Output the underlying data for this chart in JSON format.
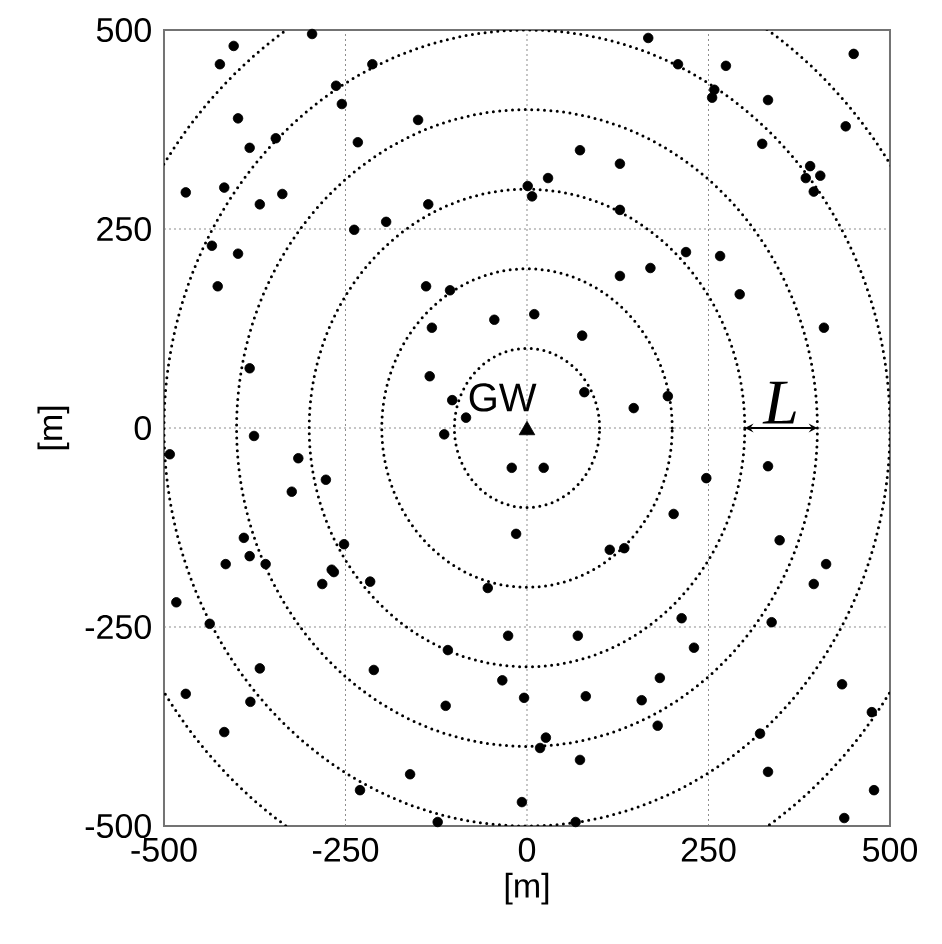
{
  "chart_data": {
    "type": "scatter",
    "xlabel": "[m]",
    "ylabel": "[m]",
    "xlim": [
      -500,
      500
    ],
    "ylim": [
      -500,
      500
    ],
    "xticks": [
      -500,
      -250,
      0,
      250,
      500
    ],
    "yticks": [
      -500,
      -250,
      0,
      250,
      500
    ],
    "grid": true,
    "annotations": [
      "L"
    ],
    "series": [
      {
        "type": "scatter",
        "color": "#000000",
        "marker": "circle",
        "x": [
          -404,
          -423,
          -296,
          -213,
          -263,
          -255,
          -398,
          -346,
          -382,
          -233,
          -150,
          -470,
          -417,
          -368,
          -337,
          -136,
          -194,
          -238,
          1,
          7,
          -434,
          -398,
          -426,
          -139,
          -106,
          167,
          208,
          274,
          450,
          258,
          255,
          332,
          439,
          324,
          73,
          128,
          390,
          384,
          404,
          395,
          29,
          128,
          219,
          266,
          128,
          170,
          293,
          -131,
          -45,
          10,
          -382,
          -134,
          -103,
          -84,
          -114,
          -376,
          -492,
          -315,
          -277,
          -324,
          -21,
          -15,
          -390,
          -252,
          -415,
          -382,
          -360,
          -269,
          76,
          409,
          79,
          147,
          194,
          23,
          247,
          332,
          202,
          114,
          134,
          348,
          412,
          -266,
          -282,
          -216,
          -483,
          -437,
          -54,
          -26,
          -109,
          -368,
          -211,
          -34,
          -4,
          -470,
          -381,
          -112,
          -417,
          -161,
          -230,
          -7,
          -123,
          395,
          213,
          337,
          70,
          230,
          183,
          434,
          81,
          158,
          475,
          180,
          321,
          26,
          18,
          73,
          332,
          478,
          437,
          67
        ],
        "values": [
          480,
          457,
          495,
          457,
          430,
          407,
          389,
          364,
          352,
          359,
          387,
          296,
          302,
          281,
          294,
          281,
          259,
          249,
          304,
          291,
          229,
          219,
          178,
          178,
          173,
          490,
          457,
          455,
          470,
          425,
          415,
          412,
          379,
          357,
          349,
          332,
          329,
          314,
          317,
          297,
          314,
          274,
          221,
          216,
          191,
          201,
          168,
          126,
          136,
          143,
          75,
          65,
          35,
          13,
          -8,
          -10,
          -33,
          -38,
          -65,
          -80,
          -50,
          -133,
          -138,
          -146,
          -171,
          -161,
          -171,
          -178,
          116,
          126,
          45,
          25,
          40,
          -50,
          -63,
          -48,
          -108,
          -153,
          -151,
          -141,
          -171,
          -181,
          -196,
          -193,
          -219,
          -246,
          -201,
          -261,
          -279,
          -302,
          -304,
          -317,
          -339,
          -334,
          -344,
          -349,
          -382,
          -435,
          -455,
          -470,
          -495,
          -196,
          -239,
          -244,
          -261,
          -276,
          -314,
          -322,
          -337,
          -342,
          -357,
          -374,
          -384,
          -389,
          -402,
          -417,
          -432,
          -455,
          -490,
          -495
        ]
      },
      {
        "type": "scatter",
        "name": "GW",
        "color": "#000000",
        "marker": "triangle",
        "x": [
          0
        ],
        "values": [
          0
        ]
      }
    ]
  }
}
